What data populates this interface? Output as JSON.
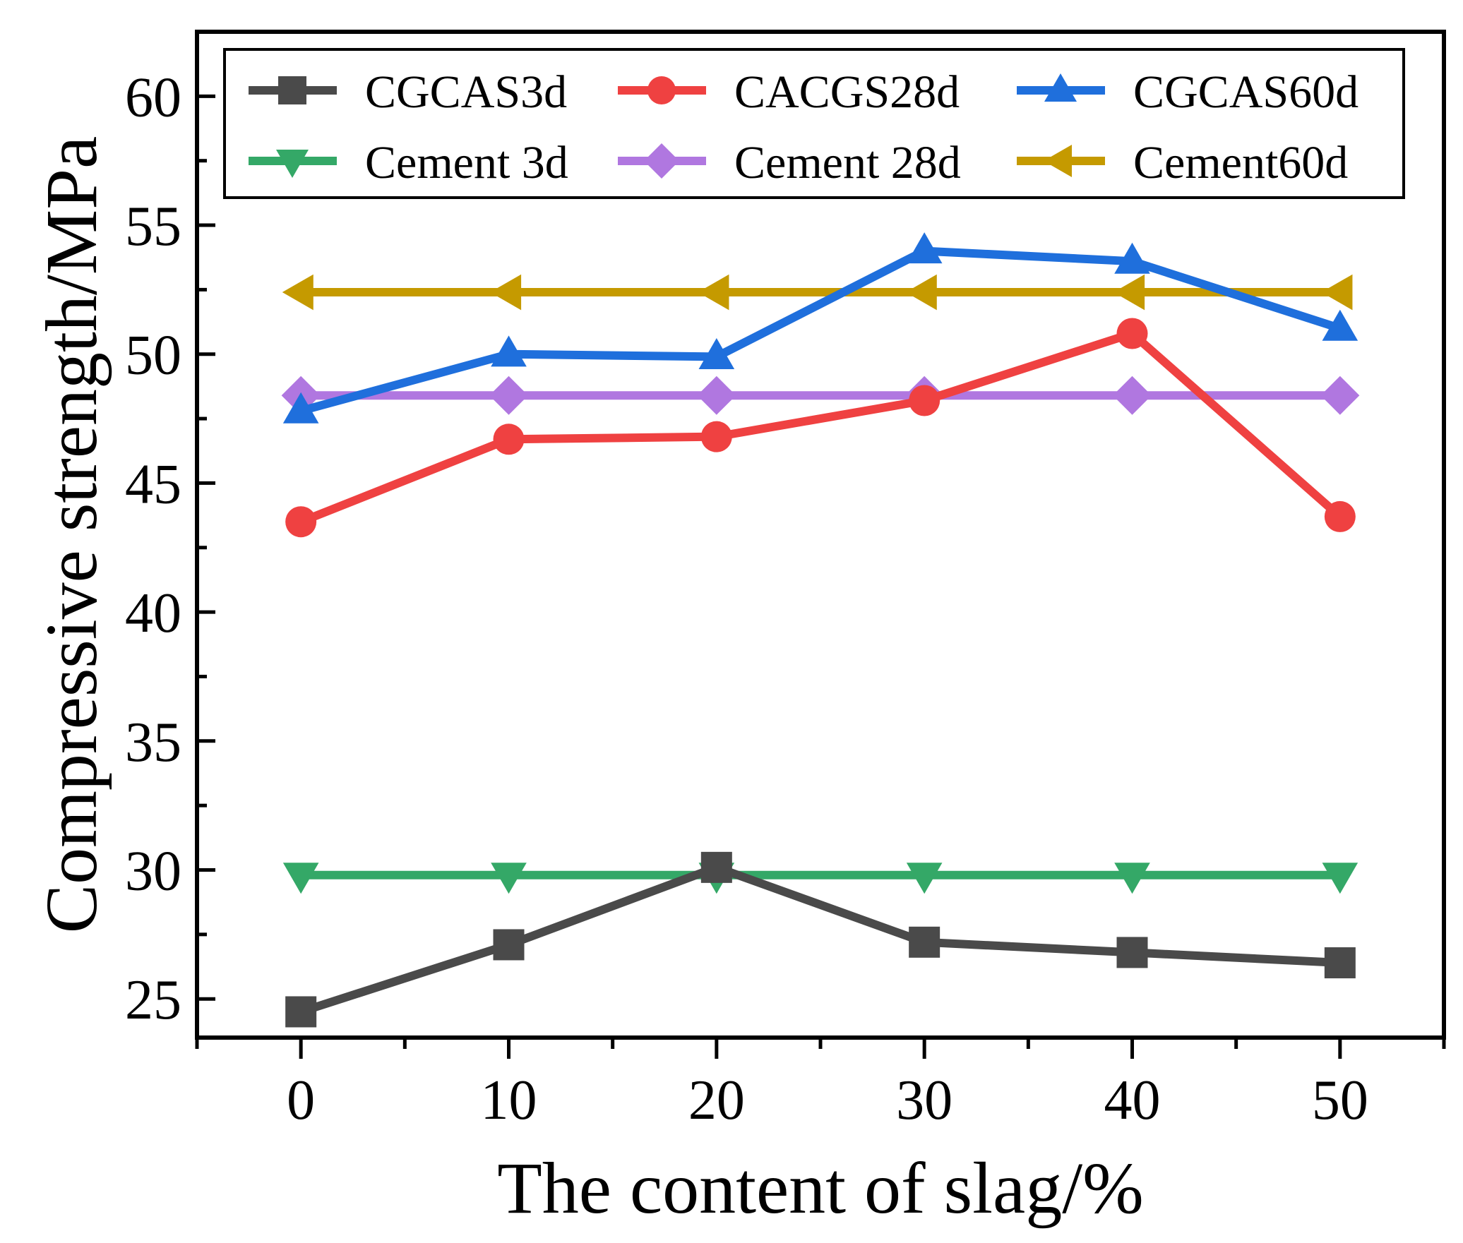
{
  "chart_data": {
    "type": "line",
    "title": "",
    "xlabel": "The content of slag/%",
    "ylabel": "Compressive strength/MPa",
    "x": [
      0,
      10,
      20,
      30,
      40,
      50
    ],
    "xlim": [
      -5,
      55
    ],
    "ylim": [
      23.5,
      62.5
    ],
    "xticks": [
      0,
      10,
      20,
      30,
      40,
      50
    ],
    "yticks": [
      25,
      30,
      35,
      40,
      45,
      50,
      55,
      60
    ],
    "grid": false,
    "legend_position": "top",
    "series": [
      {
        "name": "CGCAS3d",
        "color": "#4a4a4a",
        "marker": "square",
        "values": [
          24.5,
          27.1,
          30.1,
          27.2,
          26.8,
          26.4
        ]
      },
      {
        "name": "CACGS28d",
        "color": "#ef4141",
        "marker": "circle",
        "values": [
          43.5,
          46.7,
          46.8,
          48.2,
          50.8,
          43.7
        ]
      },
      {
        "name": "CGCAS60d",
        "color": "#1f6fdc",
        "marker": "triangle-up",
        "values": [
          47.8,
          50.0,
          49.9,
          54.0,
          53.6,
          51.0
        ]
      },
      {
        "name": "Cement 3d",
        "color": "#34a867",
        "marker": "triangle-down",
        "values": [
          29.8,
          29.8,
          29.8,
          29.8,
          29.8,
          29.8
        ]
      },
      {
        "name": "Cement 28d",
        "color": "#b077e0",
        "marker": "diamond",
        "values": [
          48.4,
          48.4,
          48.4,
          48.4,
          48.4,
          48.4
        ]
      },
      {
        "name": "Cement60d",
        "color": "#c59a00",
        "marker": "triangle-left",
        "values": [
          52.4,
          52.4,
          52.4,
          52.4,
          52.4,
          52.4
        ]
      }
    ]
  }
}
